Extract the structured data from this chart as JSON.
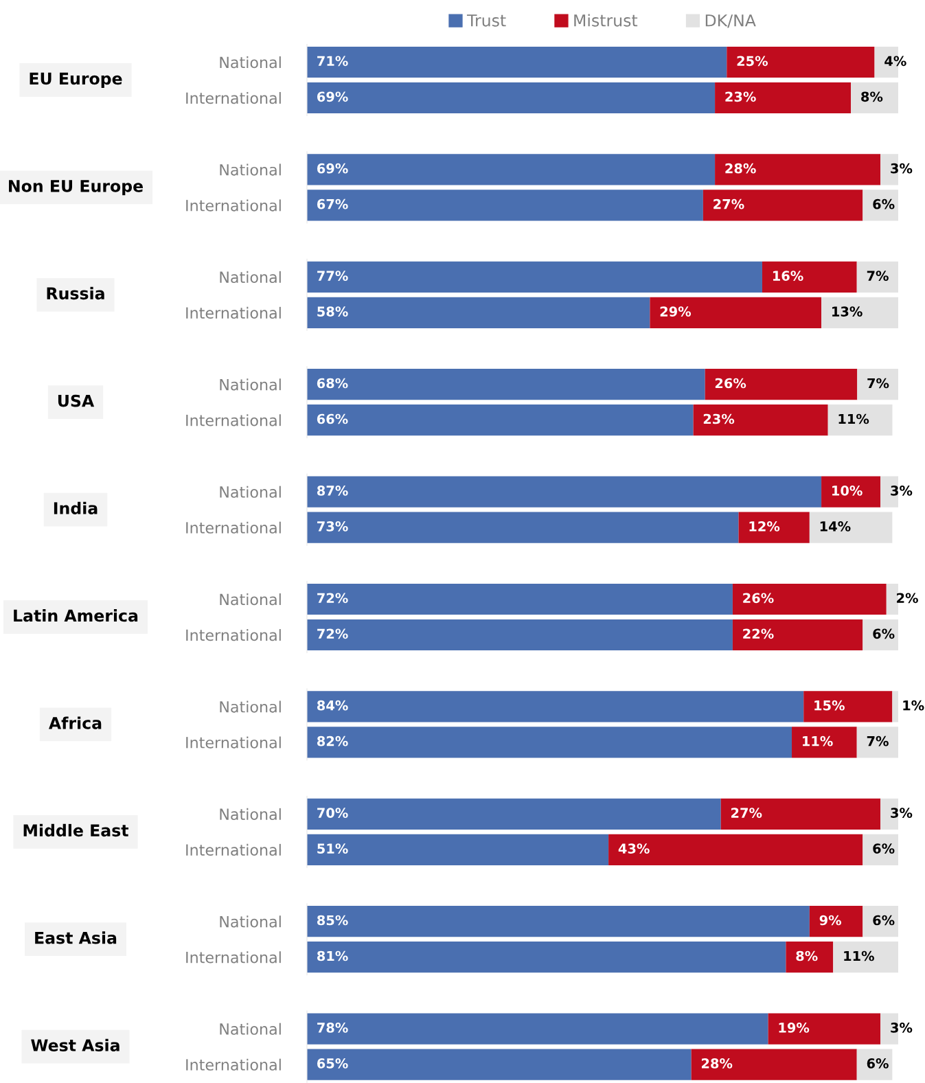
{
  "chart_data": [
    {
      "type": "bar",
      "title": "EU Europe",
      "categories": [
        "National",
        "International"
      ],
      "stacked": true,
      "orientation": "horizontal",
      "legend": "top",
      "series": [
        {
          "name": "Trust",
          "color": "#4a6fb0",
          "values": [
            71,
            69
          ],
          "value_labels": [
            "71%",
            "69%"
          ]
        },
        {
          "name": "Mistrust",
          "color": "#c00c1e",
          "values": [
            25,
            23
          ],
          "value_labels": [
            "25%",
            "23%"
          ]
        },
        {
          "name": "DK/NA",
          "color": "#e2e2e2",
          "values": [
            4,
            8
          ],
          "value_labels": [
            "4%",
            "8%"
          ]
        }
      ]
    },
    {
      "type": "bar",
      "title": "Non EU Europe",
      "categories": [
        "National",
        "International"
      ],
      "stacked": true,
      "orientation": "horizontal",
      "series": [
        {
          "color": "#4a6fb0",
          "values": [
            69,
            67
          ],
          "value_labels": [
            "69%",
            "67%"
          ]
        },
        {
          "color": "#c00c1e",
          "values": [
            28,
            27
          ],
          "value_labels": [
            "28%",
            "27%"
          ]
        },
        {
          "color": "#e2e2e2",
          "values": [
            3,
            6
          ],
          "value_labels": [
            "3%",
            "6%"
          ]
        }
      ]
    },
    {
      "type": "bar",
      "title": "Russia",
      "categories": [
        "National",
        "International"
      ],
      "stacked": true,
      "orientation": "horizontal",
      "series": [
        {
          "color": "#4a6fb0",
          "values": [
            77,
            58
          ],
          "value_labels": [
            "77%",
            "58%"
          ]
        },
        {
          "color": "#c00c1e",
          "values": [
            16,
            29
          ],
          "value_labels": [
            "16%",
            "29%"
          ]
        },
        {
          "color": "#e2e2e2",
          "values": [
            7,
            13
          ],
          "value_labels": [
            "7%",
            "13%"
          ]
        }
      ]
    },
    {
      "type": "bar",
      "title": "USA",
      "categories": [
        "National",
        "International"
      ],
      "stacked": true,
      "orientation": "horizontal",
      "series": [
        {
          "color": "#4a6fb0",
          "values": [
            68,
            66
          ],
          "value_labels": [
            "68%",
            "66%"
          ]
        },
        {
          "color": "#c00c1e",
          "values": [
            26,
            23
          ],
          "value_labels": [
            "26%",
            "23%"
          ]
        },
        {
          "color": "#e2e2e2",
          "values": [
            7,
            11
          ],
          "value_labels": [
            "7%",
            "11%"
          ]
        }
      ]
    },
    {
      "type": "bar",
      "title": "India",
      "categories": [
        "National",
        "International"
      ],
      "stacked": true,
      "orientation": "horizontal",
      "series": [
        {
          "color": "#4a6fb0",
          "values": [
            87,
            73
          ],
          "value_labels": [
            "87%",
            "73%"
          ]
        },
        {
          "color": "#c00c1e",
          "values": [
            10,
            12
          ],
          "value_labels": [
            "10%",
            "12%"
          ]
        },
        {
          "color": "#e2e2e2",
          "values": [
            3,
            14
          ],
          "value_labels": [
            "3%",
            "14%"
          ]
        }
      ]
    },
    {
      "type": "bar",
      "title": "Latin America",
      "categories": [
        "National",
        "International"
      ],
      "stacked": true,
      "orientation": "horizontal",
      "series": [
        {
          "color": "#4a6fb0",
          "values": [
            72,
            72
          ],
          "value_labels": [
            "72%",
            "72%"
          ]
        },
        {
          "color": "#c00c1e",
          "values": [
            26,
            22
          ],
          "value_labels": [
            "26%",
            "22%"
          ]
        },
        {
          "color": "#e2e2e2",
          "values": [
            2,
            6
          ],
          "value_labels": [
            "2%",
            "6%"
          ]
        }
      ]
    },
    {
      "type": "bar",
      "title": "Africa",
      "categories": [
        "National",
        "International"
      ],
      "stacked": true,
      "orientation": "horizontal",
      "series": [
        {
          "color": "#4a6fb0",
          "values": [
            84,
            82
          ],
          "value_labels": [
            "84%",
            "82%"
          ]
        },
        {
          "color": "#c00c1e",
          "values": [
            15,
            11
          ],
          "value_labels": [
            "15%",
            "11%"
          ]
        },
        {
          "color": "#e2e2e2",
          "values": [
            1,
            7
          ],
          "value_labels": [
            "1%",
            "7%"
          ]
        }
      ]
    },
    {
      "type": "bar",
      "title": "Middle East",
      "categories": [
        "National",
        "International"
      ],
      "stacked": true,
      "orientation": "horizontal",
      "series": [
        {
          "color": "#4a6fb0",
          "values": [
            70,
            51
          ],
          "value_labels": [
            "70%",
            "51%"
          ]
        },
        {
          "color": "#c00c1e",
          "values": [
            27,
            43
          ],
          "value_labels": [
            "27%",
            "43%"
          ]
        },
        {
          "color": "#e2e2e2",
          "values": [
            3,
            6
          ],
          "value_labels": [
            "3%",
            "6%"
          ]
        }
      ]
    },
    {
      "type": "bar",
      "title": "East Asia",
      "categories": [
        "National",
        "International"
      ],
      "stacked": true,
      "orientation": "horizontal",
      "series": [
        {
          "color": "#4a6fb0",
          "values": [
            85,
            81
          ],
          "value_labels": [
            "85%",
            "81%"
          ]
        },
        {
          "color": "#c00c1e",
          "values": [
            9,
            8
          ],
          "value_labels": [
            "9%",
            "8%"
          ]
        },
        {
          "color": "#e2e2e2",
          "values": [
            6,
            11
          ],
          "value_labels": [
            "6%",
            "11%"
          ]
        }
      ]
    },
    {
      "type": "bar",
      "title": "West Asia",
      "categories": [
        "National",
        "International"
      ],
      "stacked": true,
      "orientation": "horizontal",
      "series": [
        {
          "color": "#4a6fb0",
          "values": [
            78,
            65
          ],
          "value_labels": [
            "78%",
            "65%"
          ]
        },
        {
          "color": "#c00c1e",
          "values": [
            19,
            28
          ],
          "value_labels": [
            "19%",
            "28%"
          ]
        },
        {
          "color": "#e2e2e2",
          "values": [
            3,
            6
          ],
          "value_labels": [
            "3%",
            "6%"
          ]
        }
      ]
    }
  ]
}
